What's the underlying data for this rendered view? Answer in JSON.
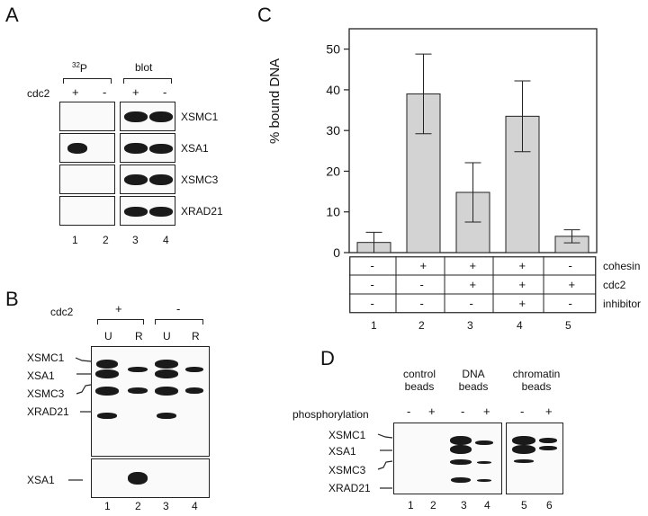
{
  "panelA": {
    "label": "A",
    "header_32p_sup": "32",
    "header_32p": "P",
    "header_blot": "blot",
    "cdc2_label": "cdc2",
    "signs": [
      "+",
      "-",
      "+",
      "-"
    ],
    "rows": [
      "XSMC1",
      "XSA1",
      "XSMC3",
      "XRAD21"
    ],
    "lanes": [
      "1",
      "2",
      "3",
      "4"
    ]
  },
  "panelB": {
    "label": "B",
    "cdc2_label": "cdc2",
    "signs": [
      "+",
      "-"
    ],
    "cols": [
      "U",
      "R",
      "U",
      "R"
    ],
    "proteins": [
      "XSMC1",
      "XSA1",
      "XSMC3",
      "XRAD21"
    ],
    "lower_label": "XSA1",
    "lanes": [
      "1",
      "2",
      "3",
      "4"
    ]
  },
  "panelC": {
    "label": "C",
    "table_rows": [
      {
        "name": "cohesin",
        "values": [
          "-",
          "+",
          "+",
          "+",
          "-"
        ]
      },
      {
        "name": "cdc2",
        "values": [
          "-",
          "-",
          "+",
          "+",
          "+"
        ]
      },
      {
        "name": "inhibitor",
        "values": [
          "-",
          "-",
          "-",
          "+",
          "-"
        ]
      }
    ],
    "lanes": [
      "1",
      "2",
      "3",
      "4",
      "5"
    ]
  },
  "panelD": {
    "label": "D",
    "groups": [
      "control\nbeads",
      "DNA\nbeads",
      "chromatin\nbeads"
    ],
    "group_line1": [
      "control",
      "DNA",
      "chromatin"
    ],
    "group_line2": [
      "beads",
      "beads",
      "beads"
    ],
    "phos_label": "phosphorylation",
    "signs": [
      "-",
      "+",
      "-",
      "+",
      "-",
      "+"
    ],
    "proteins": [
      "XSMC1",
      "XSA1",
      "XSMC3",
      "XRAD21"
    ],
    "lanes": [
      "1",
      "2",
      "3",
      "4",
      "5",
      "6"
    ]
  },
  "chart_data": {
    "type": "bar",
    "categories": [
      "1",
      "2",
      "3",
      "4",
      "5"
    ],
    "values": [
      2.5,
      39,
      14.8,
      33.5,
      4
    ],
    "errors": [
      2.5,
      9.8,
      7.3,
      8.7,
      1.6
    ],
    "ylabel": "% bound DNA",
    "ylim": [
      0,
      55
    ],
    "yticks": [
      0,
      10,
      20,
      30,
      40,
      50
    ],
    "bar_color": "#d3d3d3"
  }
}
